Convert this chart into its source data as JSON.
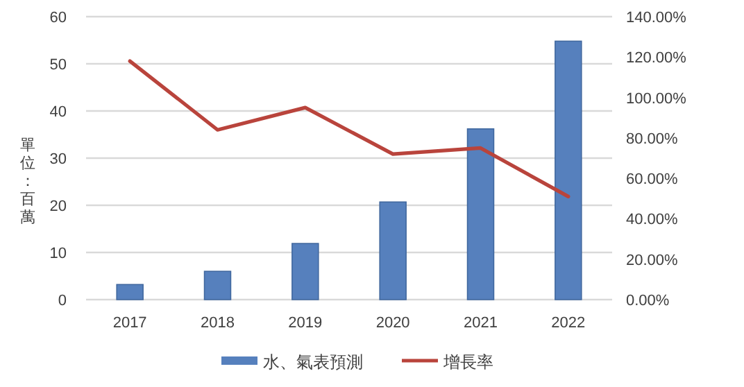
{
  "chart_data": {
    "type": "bar",
    "ylabel": "單位：百萬",
    "categories": [
      "2017",
      "2018",
      "2019",
      "2020",
      "2021",
      "2022"
    ],
    "series": [
      {
        "name": "水、氣表預測",
        "color": "#5680bd",
        "values": [
          3.2,
          6.0,
          11.9,
          20.7,
          36.2,
          54.8
        ]
      },
      {
        "name": "增長率",
        "type": "line",
        "axis": "y2",
        "color": "#b9443c",
        "values": [
          118,
          84,
          95,
          72,
          75,
          51
        ]
      }
    ],
    "ylim": [
      0,
      60
    ],
    "yticks": [
      0,
      10,
      20,
      30,
      40,
      50,
      60
    ],
    "y2lim": [
      0,
      140
    ],
    "y2ticks": [
      {
        "value": 0,
        "label": "0.00%"
      },
      {
        "value": 20,
        "label": "20.00%"
      },
      {
        "value": 40,
        "label": "40.00%"
      },
      {
        "value": 60,
        "label": "60.00%"
      },
      {
        "value": 80,
        "label": "80.00%"
      },
      {
        "value": 100,
        "label": "100.00%"
      },
      {
        "value": 120,
        "label": "120.00%"
      },
      {
        "value": 140,
        "label": "140.00%"
      }
    ],
    "grid": "y",
    "legend": "bottom",
    "marker": "none",
    "line_style": "solid"
  }
}
